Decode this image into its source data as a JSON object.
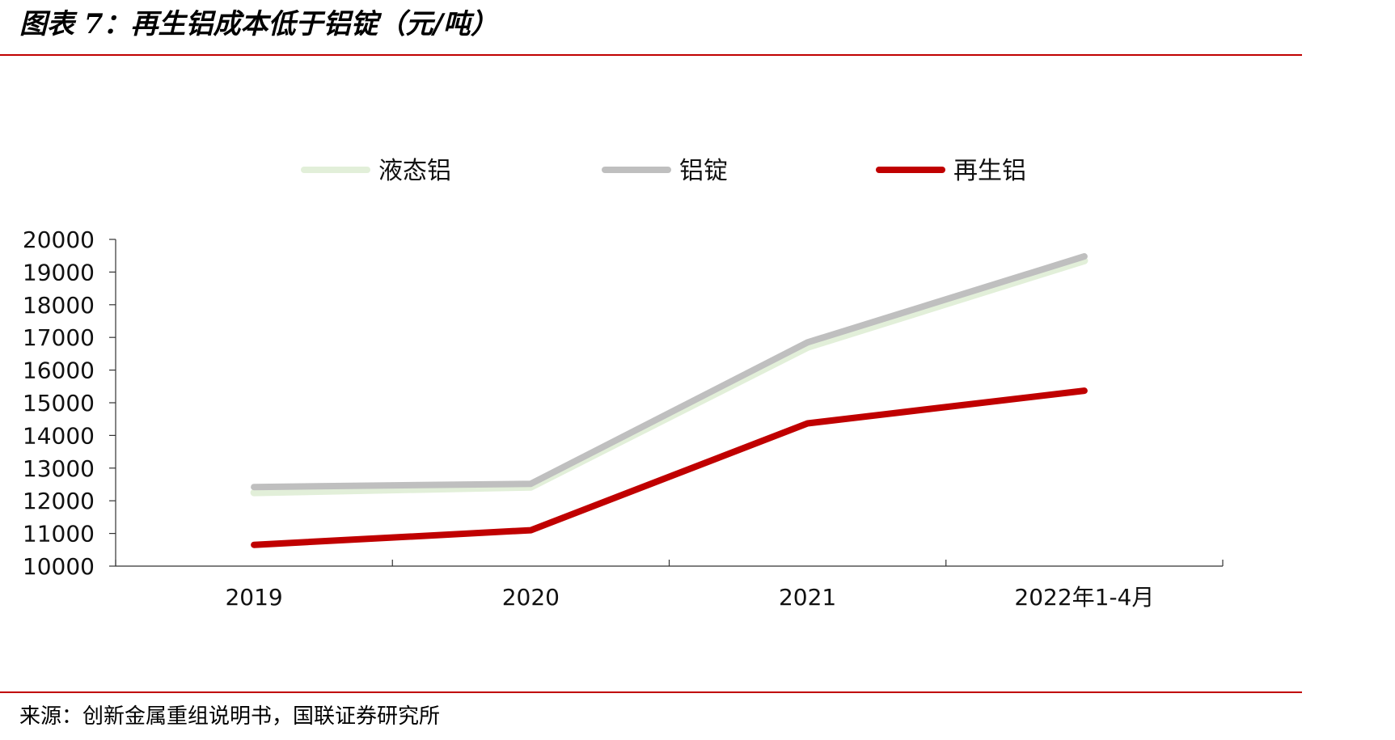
{
  "title": "图表 7：再生铝成本低于铝锭（元/吨）",
  "source": "来源：创新金属重组说明书，国联证券研究所",
  "colors": {
    "rule": "#c00000"
  },
  "chart_data": {
    "type": "line",
    "title": "再生铝成本低于铝锭（元/吨）",
    "categories": [
      "2019",
      "2020",
      "2021",
      "2022年1-4月"
    ],
    "series": [
      {
        "name": "液态铝",
        "color": "#e2efd9",
        "values": [
          12250,
          12420,
          16700,
          19350
        ]
      },
      {
        "name": "铝锭",
        "color": "#bfbfbf",
        "values": [
          12420,
          12520,
          16850,
          19480
        ]
      },
      {
        "name": "再生铝",
        "color": "#c00000",
        "values": [
          10650,
          11100,
          14370,
          15370
        ]
      }
    ],
    "ylim": [
      10000,
      20000
    ],
    "yticks": [
      "10000",
      "11000",
      "12000",
      "13000",
      "14000",
      "15000",
      "16000",
      "17000",
      "18000",
      "19000",
      "20000"
    ],
    "xlabel": "",
    "ylabel": "",
    "grid": false,
    "legend_position": "top"
  }
}
